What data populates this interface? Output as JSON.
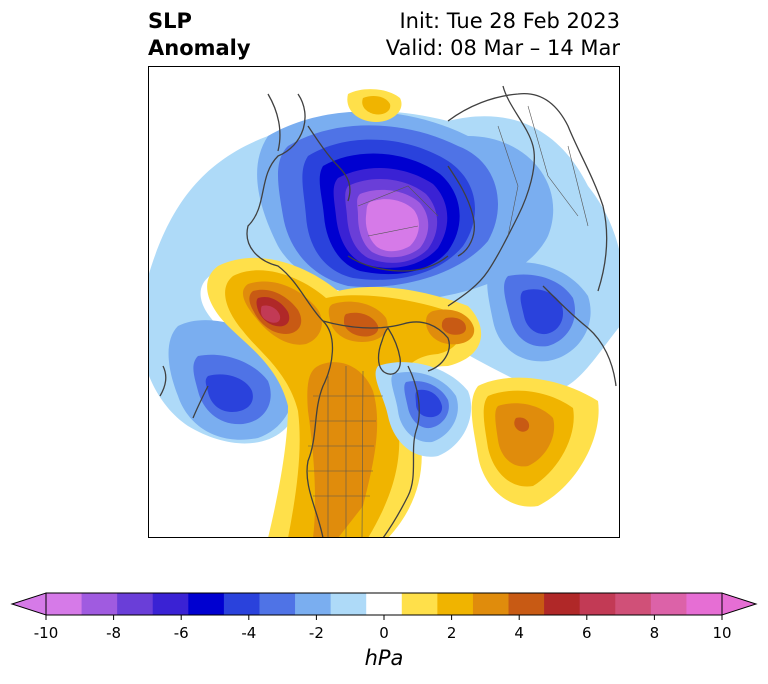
{
  "title": {
    "variable": "SLP",
    "field": "Anomaly",
    "init": "Init: Tue 28 Feb 2023",
    "valid": "Valid: 08 Mar – 14 Mar"
  },
  "colorbar": {
    "ticks": [
      "-10",
      "-8",
      "-6",
      "-4",
      "-2",
      "0",
      "2",
      "4",
      "6",
      "8",
      "10"
    ],
    "unit": "hPa",
    "colors": [
      "#d67ae8",
      "#a05be0",
      "#6a3ed8",
      "#3a22d4",
      "#0000d0",
      "#2a42dc",
      "#4f73e6",
      "#7aaef0",
      "#aedaf8",
      "#ffffff",
      "#ffe04a",
      "#f0b400",
      "#e08c0c",
      "#c85a14",
      "#b02828",
      "#c23a55",
      "#d05078",
      "#dc62a8",
      "#e66ed4"
    ],
    "under_color": "#d67ae8",
    "over_color": "#e66ed4"
  }
}
